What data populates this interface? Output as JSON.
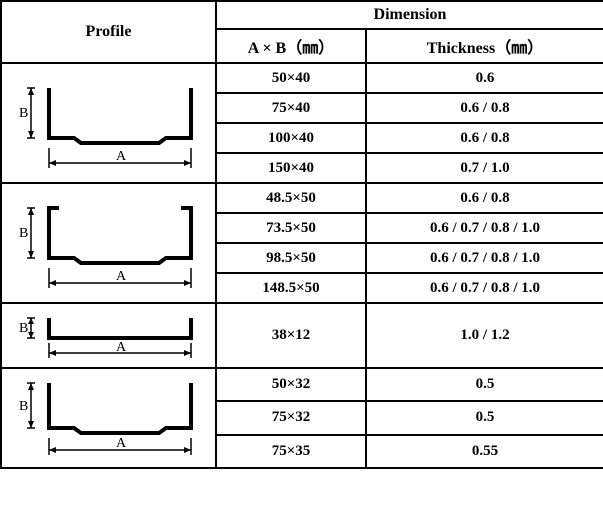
{
  "header": {
    "profile": "Profile",
    "dimension": "Dimension",
    "ab": "A × B（㎜）",
    "thickness": "Thickness（㎜）"
  },
  "group1": {
    "rows": [
      {
        "ab": "50×40",
        "t": "0.6"
      },
      {
        "ab": "75×40",
        "t": "0.6 / 0.8"
      },
      {
        "ab": "100×40",
        "t": "0.6 / 0.8"
      },
      {
        "ab": "150×40",
        "t": "0.7 / 1.0"
      }
    ]
  },
  "group2": {
    "rows": [
      {
        "ab": "48.5×50",
        "t": "0.6 / 0.8"
      },
      {
        "ab": "73.5×50",
        "t": "0.6 / 0.7 / 0.8 / 1.0"
      },
      {
        "ab": "98.5×50",
        "t": "0.6 / 0.7 / 0.8 / 1.0"
      },
      {
        "ab": "148.5×50",
        "t": "0.6 / 0.7 / 0.8 / 1.0"
      }
    ]
  },
  "group3": {
    "rows": [
      {
        "ab": "38×12",
        "t": "1.0 / 1.2"
      }
    ]
  },
  "group4": {
    "rows": [
      {
        "ab": "50×32",
        "t": "0.5"
      },
      {
        "ab": "75×32",
        "t": "0.5"
      },
      {
        "ab": "75×35",
        "t": "0.55"
      }
    ]
  },
  "labels": {
    "A": "A",
    "B": "B"
  },
  "style": {
    "stroke": "#000000",
    "sw_thick": 4,
    "sw_thin": 1.5
  },
  "colwidths": {
    "profile": 215,
    "ab": 150,
    "thickness": 238
  }
}
